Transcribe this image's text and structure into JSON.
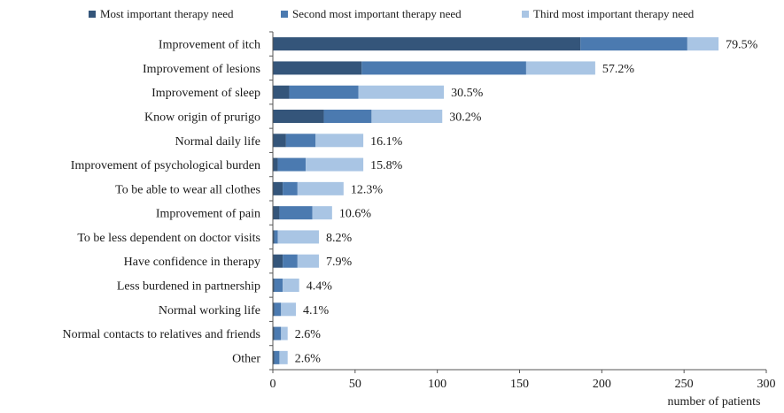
{
  "colors": {
    "most": "#34557a",
    "second": "#4b7ab0",
    "third": "#a9c5e4"
  },
  "chart_data": {
    "type": "bar",
    "orientation": "horizontal",
    "stacked": true,
    "title": "",
    "xlabel": "number of patients",
    "ylabel": "",
    "xlim": [
      0,
      300
    ],
    "xticks": [
      0,
      50,
      100,
      150,
      200,
      250,
      300
    ],
    "grid": false,
    "legend_position": "top",
    "categories": [
      "Improvement of itch",
      "Improvement of lesions",
      "Improvement of sleep",
      "Know origin of prurigo",
      "Normal daily life",
      "Improvement of psychological burden",
      "To be able to wear all clothes",
      "Improvement of pain",
      "To be less dependent on doctor visits",
      "Have confidence in therapy",
      "Less burdened in partnership",
      "Normal working life",
      "Normal contacts to relatives and friends",
      "Other"
    ],
    "series": [
      {
        "name": "Most important therapy need",
        "values": [
          187,
          54,
          10,
          31,
          8,
          3,
          6,
          4,
          1,
          6,
          1,
          1,
          1,
          1
        ]
      },
      {
        "name": "Second most important therapy need",
        "values": [
          65,
          100,
          42,
          29,
          18,
          17,
          9,
          20,
          2,
          9,
          5,
          4,
          4,
          3
        ]
      },
      {
        "name": "Third most important therapy need",
        "values": [
          19,
          42,
          52,
          43,
          29,
          35,
          28,
          12,
          25,
          13,
          10,
          9,
          4,
          5
        ]
      }
    ],
    "data_labels": [
      "79.5%",
      "57.2%",
      "30.5%",
      "30.2%",
      "16.1%",
      "15.8%",
      "12.3%",
      "10.6%",
      "8.2%",
      "7.9%",
      "4.4%",
      "4.1%",
      "2.6%",
      "2.6%"
    ]
  }
}
